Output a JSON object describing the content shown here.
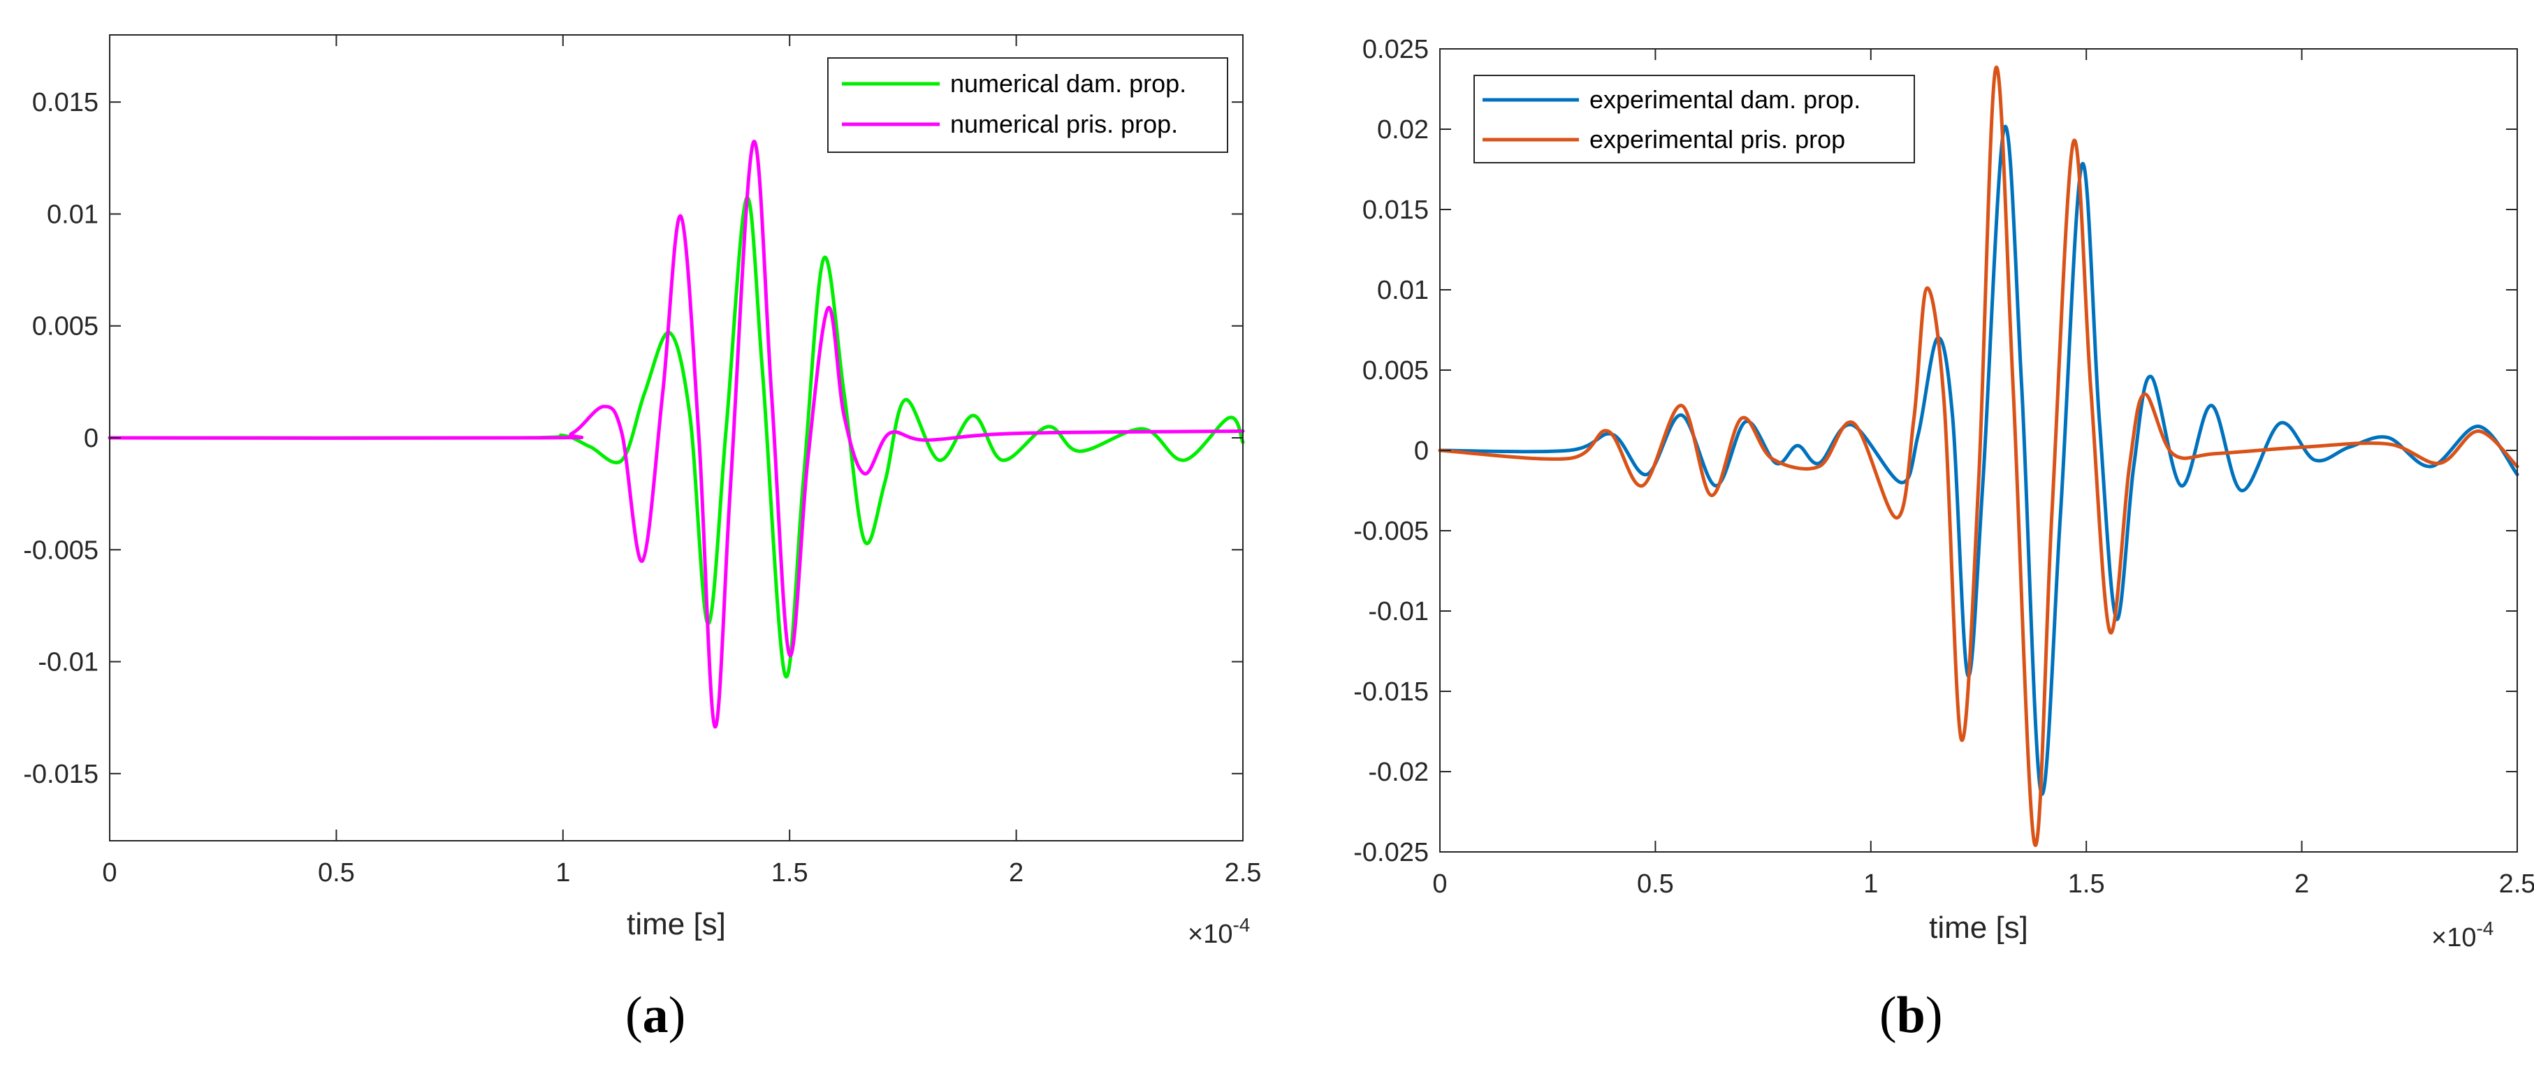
{
  "chart_data": [
    {
      "type": "line",
      "panel": "a",
      "xlabel": "time [s]",
      "ylabel": "",
      "x_exponent_label": "×10",
      "x_exponent_power": "-4",
      "xlim": [
        0,
        2.5
      ],
      "ylim": [
        -0.018,
        0.018
      ],
      "xticks": [
        0,
        0.5,
        1,
        1.5,
        2,
        2.5
      ],
      "xtick_labels": [
        "0",
        "0.5",
        "1",
        "1.5",
        "2",
        "2.5"
      ],
      "yticks": [
        -0.015,
        -0.01,
        -0.005,
        0,
        0.005,
        0.01,
        0.015
      ],
      "ytick_labels": [
        "-0.015",
        "-0.01",
        "-0.005",
        "0",
        "0.005",
        "0.01",
        "0.015"
      ],
      "grid": false,
      "legend_position": "top-right",
      "caption_letter": "a",
      "series": [
        {
          "name": "numerical dam. prop.",
          "color": "#00ee00",
          "points": [
            [
              0,
              0
            ],
            [
              0.9,
              0
            ],
            [
              1.0,
              0.0001
            ],
            [
              1.06,
              -0.0004
            ],
            [
              1.13,
              -0.001
            ],
            [
              1.18,
              0.002
            ],
            [
              1.235,
              0.0047
            ],
            [
              1.28,
              0.001
            ],
            [
              1.32,
              -0.0083
            ],
            [
              1.36,
              0.0004
            ],
            [
              1.405,
              0.0107
            ],
            [
              1.44,
              0.003
            ],
            [
              1.49,
              -0.0106
            ],
            [
              1.53,
              -0.002
            ],
            [
              1.575,
              0.008
            ],
            [
              1.62,
              0.002
            ],
            [
              1.665,
              -0.0046
            ],
            [
              1.71,
              -0.002
            ],
            [
              1.755,
              0.0017
            ],
            [
              1.83,
              -0.001
            ],
            [
              1.905,
              0.001
            ],
            [
              1.97,
              -0.001
            ],
            [
              2.07,
              0.0005
            ],
            [
              2.14,
              -0.0006
            ],
            [
              2.28,
              0.0004
            ],
            [
              2.37,
              -0.001
            ],
            [
              2.47,
              0.0009
            ],
            [
              2.5,
              -0.0002
            ]
          ]
        },
        {
          "name": "numerical pris. prop.",
          "color": "#ff00ff",
          "points": [
            [
              0,
              0
            ],
            [
              0.95,
              0
            ],
            [
              1.02,
              0.0002
            ],
            [
              1.09,
              0.0014
            ],
            [
              1.13,
              0.0002
            ],
            [
              1.175,
              -0.0055
            ],
            [
              1.22,
              0.002
            ],
            [
              1.26,
              0.0099
            ],
            [
              1.3,
              0.0
            ],
            [
              1.335,
              -0.0129
            ],
            [
              1.37,
              -0.002
            ],
            [
              1.42,
              0.0132
            ],
            [
              1.46,
              0.002
            ],
            [
              1.5,
              -0.0097
            ],
            [
              1.54,
              -0.001
            ],
            [
              1.585,
              0.0058
            ],
            [
              1.62,
              0.001
            ],
            [
              1.665,
              -0.0016
            ],
            [
              1.72,
              0.0002
            ],
            [
              1.8,
              -0.0001
            ],
            [
              2.0,
              0.0002
            ],
            [
              2.5,
              0.0003
            ]
          ]
        }
      ]
    },
    {
      "type": "line",
      "panel": "b",
      "xlabel": "time [s]",
      "ylabel": "",
      "x_exponent_label": "×10",
      "x_exponent_power": "-4",
      "xlim": [
        0,
        2.5
      ],
      "ylim": [
        -0.025,
        0.025
      ],
      "xticks": [
        0,
        0.5,
        1,
        1.5,
        2,
        2.5
      ],
      "xtick_labels": [
        "0",
        "0.5",
        "1",
        "1.5",
        "2",
        "2.5"
      ],
      "yticks": [
        -0.025,
        -0.02,
        -0.015,
        -0.01,
        -0.005,
        0,
        0.005,
        0.01,
        0.015,
        0.02,
        0.025
      ],
      "ytick_labels": [
        "-0.025",
        "-0.02",
        "-0.015",
        "-0.01",
        "-0.005",
        "0",
        "0.005",
        "0.01",
        "0.015",
        "0.02",
        "0.025"
      ],
      "grid": false,
      "legend_position": "top-left",
      "caption_letter": "b",
      "series": [
        {
          "name": "experimental dam. prop.",
          "color": "#0072bd",
          "points": [
            [
              0,
              0
            ],
            [
              0.3,
              0
            ],
            [
              0.4,
              0.001
            ],
            [
              0.48,
              -0.0015
            ],
            [
              0.56,
              0.0022
            ],
            [
              0.64,
              -0.0022
            ],
            [
              0.71,
              0.0018
            ],
            [
              0.78,
              -0.0008
            ],
            [
              0.83,
              0.0003
            ],
            [
              0.88,
              -0.0008
            ],
            [
              0.955,
              0.0016
            ],
            [
              1.07,
              -0.002
            ],
            [
              1.11,
              0.001
            ],
            [
              1.155,
              0.007
            ],
            [
              1.19,
              0.002
            ],
            [
              1.225,
              -0.014
            ],
            [
              1.26,
              -0.002
            ],
            [
              1.31,
              0.0201
            ],
            [
              1.35,
              0.004
            ],
            [
              1.395,
              -0.0213
            ],
            [
              1.44,
              -0.004
            ],
            [
              1.49,
              0.0178
            ],
            [
              1.53,
              0.002
            ],
            [
              1.57,
              -0.0105
            ],
            [
              1.61,
              -0.001
            ],
            [
              1.65,
              0.0046
            ],
            [
              1.72,
              -0.0022
            ],
            [
              1.79,
              0.0028
            ],
            [
              1.86,
              -0.0025
            ],
            [
              1.95,
              0.0017
            ],
            [
              2.03,
              -0.0006
            ],
            [
              2.11,
              0.0002
            ],
            [
              2.2,
              0.0008
            ],
            [
              2.3,
              -0.001
            ],
            [
              2.41,
              0.0015
            ],
            [
              2.5,
              -0.0015
            ]
          ]
        },
        {
          "name": "experimental pris. prop",
          "color": "#d95319",
          "points": [
            [
              0,
              0
            ],
            [
              0.3,
              -0.0005
            ],
            [
              0.39,
              0.0012
            ],
            [
              0.47,
              -0.0022
            ],
            [
              0.56,
              0.0028
            ],
            [
              0.63,
              -0.0028
            ],
            [
              0.7,
              0.002
            ],
            [
              0.77,
              -0.0005
            ],
            [
              0.88,
              -0.001
            ],
            [
              0.96,
              0.0017
            ],
            [
              1.06,
              -0.0042
            ],
            [
              1.1,
              0.002
            ],
            [
              1.13,
              0.0101
            ],
            [
              1.17,
              0.003
            ],
            [
              1.21,
              -0.018
            ],
            [
              1.25,
              -0.002
            ],
            [
              1.29,
              0.0238
            ],
            [
              1.33,
              0.004
            ],
            [
              1.38,
              -0.0245
            ],
            [
              1.42,
              -0.004
            ],
            [
              1.47,
              0.0192
            ],
            [
              1.51,
              0.004
            ],
            [
              1.555,
              -0.0113
            ],
            [
              1.6,
              -0.001
            ],
            [
              1.635,
              0.0035
            ],
            [
              1.7,
              -0.0002
            ],
            [
              1.8,
              -0.0002
            ],
            [
              2.0,
              0.0002
            ],
            [
              2.2,
              0.0004
            ],
            [
              2.32,
              -0.0008
            ],
            [
              2.41,
              0.0012
            ],
            [
              2.5,
              -0.001
            ]
          ]
        }
      ]
    }
  ]
}
